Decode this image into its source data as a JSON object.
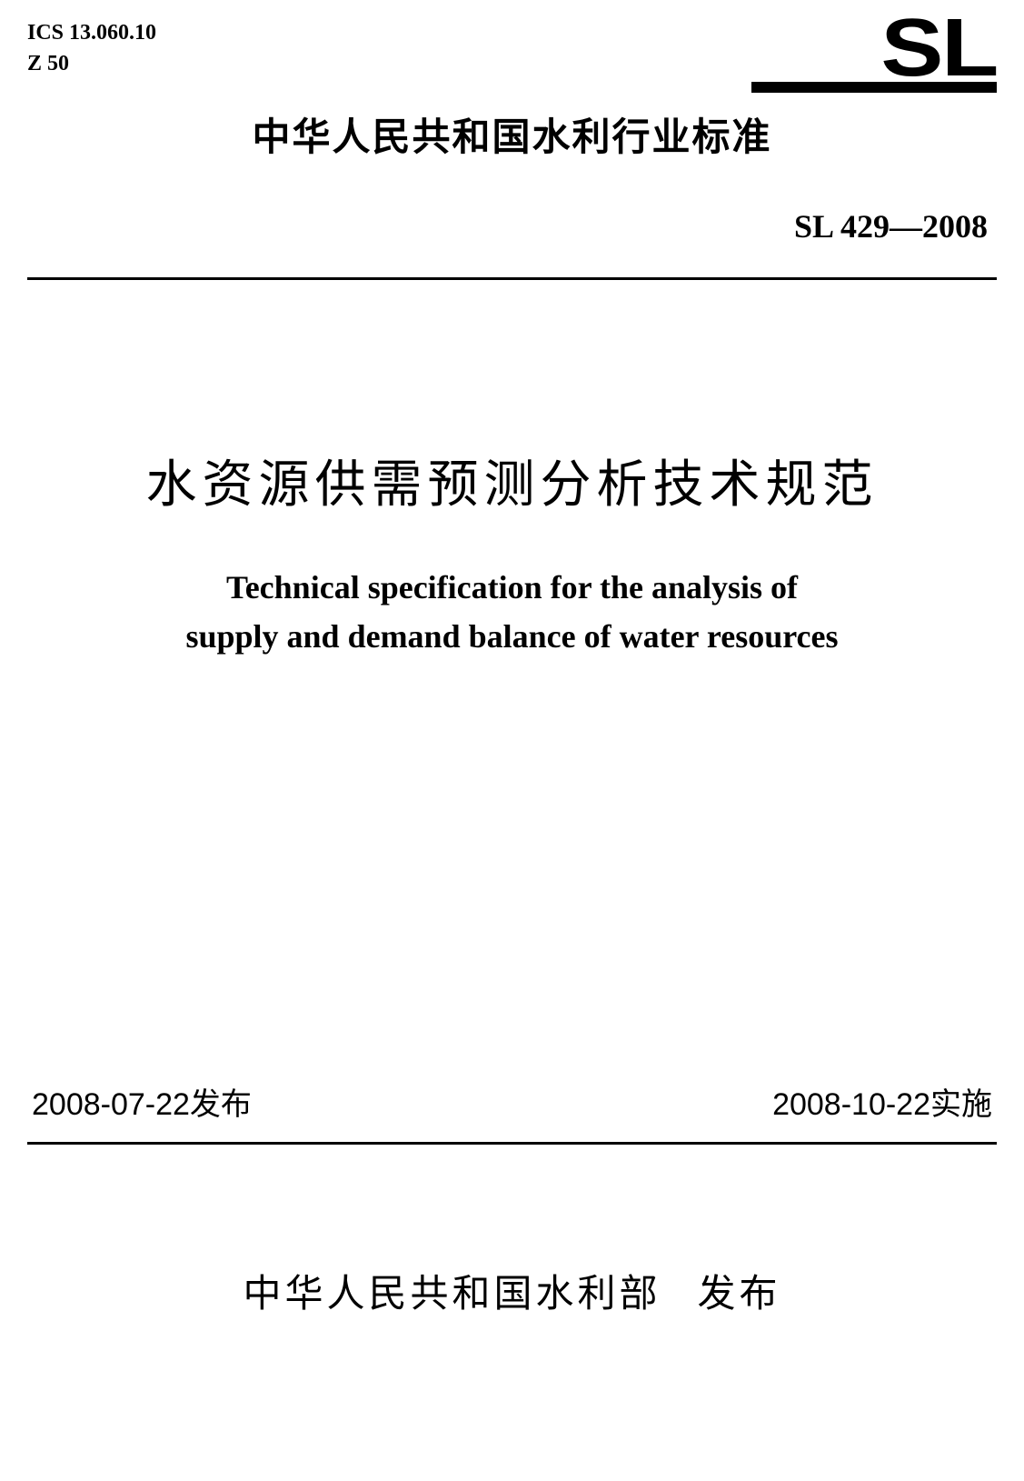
{
  "header": {
    "ics_line1": "ICS  13.060.10",
    "ics_line2": "Z  50",
    "logo_text": "SL"
  },
  "standard_category": "中华人民共和国水利行业标准",
  "standard_number": "SL 429—2008",
  "title_cn": "水资源供需预测分析技术规范",
  "title_en_line1": "Technical specification for the analysis of",
  "title_en_line2": "supply and demand balance of water resources",
  "dates": {
    "published": "2008-07-22发布",
    "effective": "2008-10-22实施"
  },
  "publisher_org": "中华人民共和国水利部",
  "publisher_action": "发布",
  "colors": {
    "text": "#000000",
    "background": "#ffffff"
  },
  "typography": {
    "title_cn_fontsize": 56,
    "title_en_fontsize": 36,
    "category_fontsize": 42,
    "standard_number_fontsize": 36,
    "ics_fontsize": 24,
    "dates_fontsize": 34,
    "publisher_fontsize": 42,
    "logo_fontsize": 90
  }
}
